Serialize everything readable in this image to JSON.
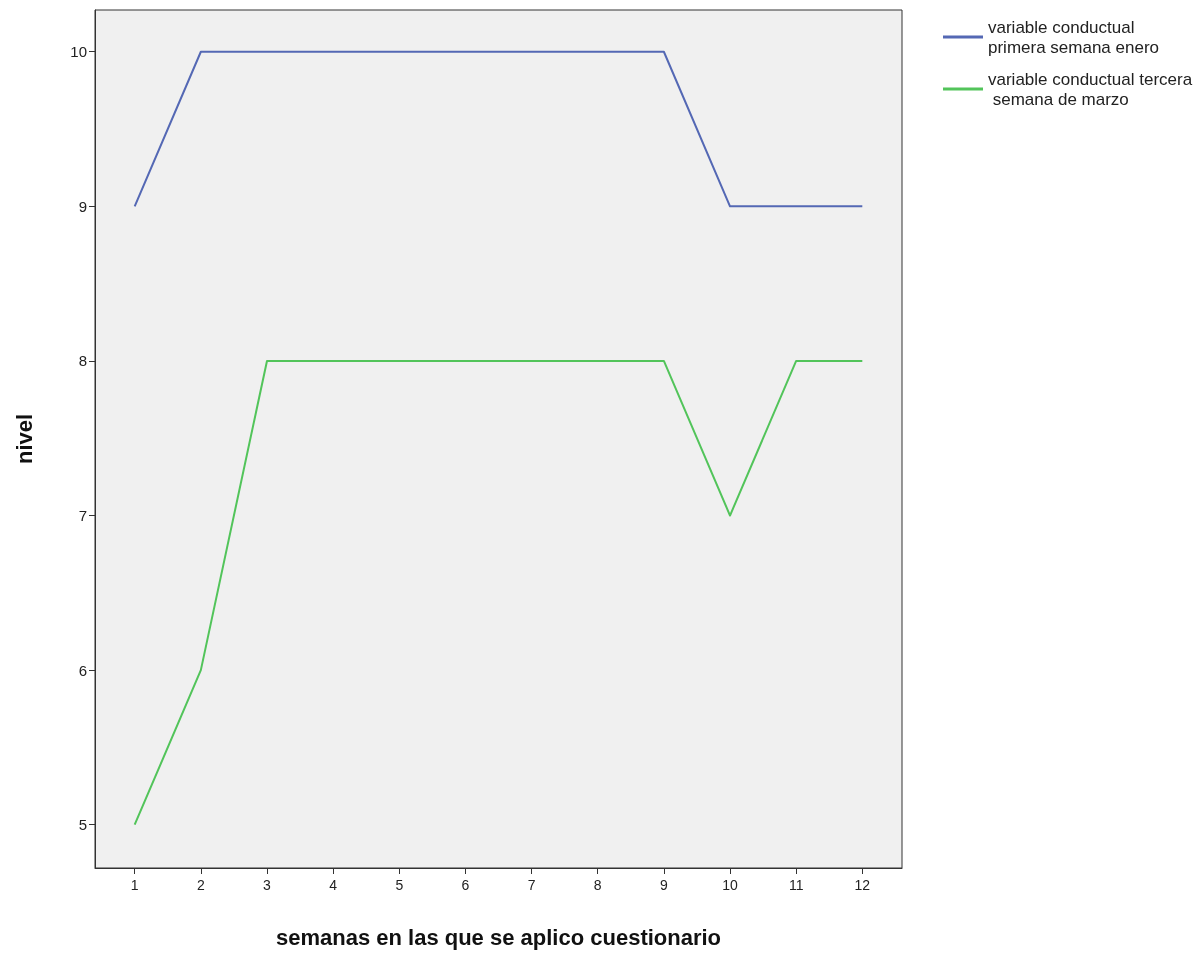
{
  "chart_data": {
    "type": "line",
    "xlabel": "semanas en las que se aplico cuestionario",
    "ylabel": "nivel",
    "x": [
      1,
      2,
      3,
      4,
      5,
      6,
      7,
      8,
      9,
      10,
      11,
      12
    ],
    "series": [
      {
        "name": "variable conductual primera semana enero",
        "color": "#5468b4",
        "values": [
          9,
          10,
          10,
          10,
          10,
          10,
          10,
          10,
          10,
          9,
          9,
          9
        ]
      },
      {
        "name": "variable conductual tercera semana de marzo",
        "color": "#52c45a",
        "values": [
          5,
          6,
          8,
          8,
          8,
          8,
          8,
          8,
          8,
          7,
          8,
          8
        ]
      }
    ],
    "xlim": [
      0.4,
      12.6
    ],
    "xticks": [
      1,
      2,
      3,
      4,
      5,
      6,
      7,
      8,
      9,
      10,
      11,
      12
    ],
    "ylim": [
      4.72,
      10.27
    ],
    "yticks": [
      5,
      6,
      7,
      8,
      9,
      10
    ],
    "grid": false,
    "legend": "top right",
    "marker": "none",
    "line_style": "solid"
  }
}
